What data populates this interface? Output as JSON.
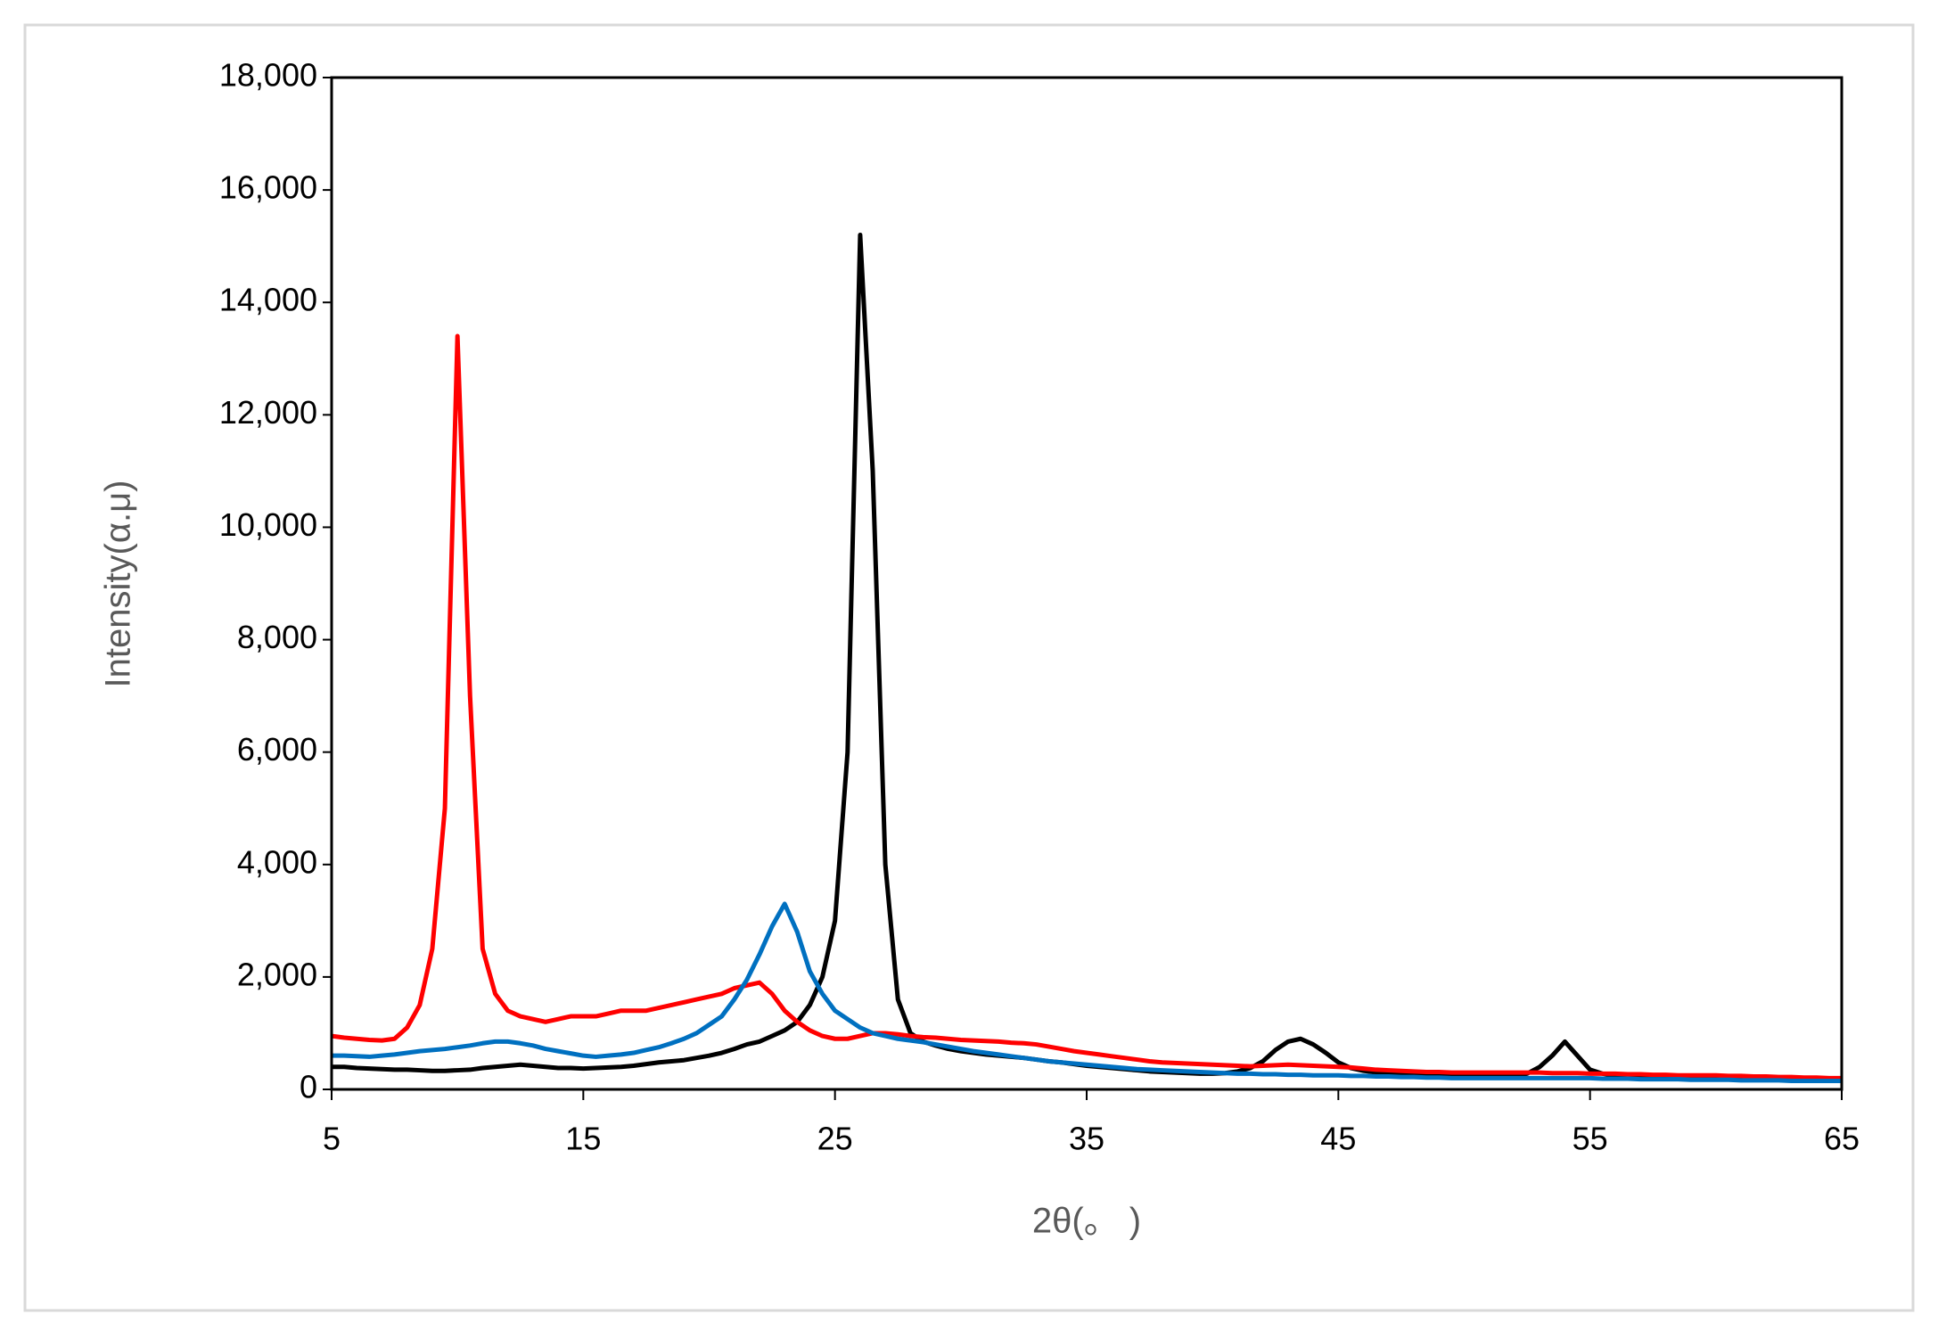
{
  "chart_data": {
    "type": "line",
    "xlabel": "2θ(。 )",
    "ylabel": "Intensity(α.μ)",
    "xlim": [
      5,
      65
    ],
    "ylim": [
      0,
      18000
    ],
    "xticks": [
      5,
      15,
      25,
      35,
      45,
      55,
      65
    ],
    "yticks": [
      0,
      {
        "value": 2000,
        "label": "2,000"
      },
      {
        "value": 4000,
        "label": "4,000"
      },
      {
        "value": 6000,
        "label": "6,000"
      },
      {
        "value": 8000,
        "label": "8,000"
      },
      {
        "value": 10000,
        "label": "10,000"
      },
      {
        "value": 12000,
        "label": "12,000"
      },
      {
        "value": 14000,
        "label": "14,000"
      },
      {
        "value": 16000,
        "label": "16,000"
      },
      {
        "value": 18000,
        "label": "18,000"
      }
    ],
    "grid": false,
    "x": [
      5,
      5.5,
      6,
      6.5,
      7,
      7.5,
      8,
      8.5,
      9,
      9.5,
      10,
      10.5,
      11,
      11.5,
      12,
      12.5,
      13,
      13.5,
      14,
      14.5,
      15,
      15.5,
      16,
      16.5,
      17,
      17.5,
      18,
      18.5,
      19,
      19.5,
      20,
      20.5,
      21,
      21.5,
      22,
      22.5,
      23,
      23.5,
      24,
      24.5,
      25,
      25.5,
      26,
      26.5,
      27,
      27.5,
      28,
      28.5,
      29,
      29.5,
      30,
      30.5,
      31,
      31.5,
      32,
      32.5,
      33,
      33.5,
      34,
      34.5,
      35,
      35.5,
      36,
      36.5,
      37,
      37.5,
      38,
      38.5,
      39,
      39.5,
      40,
      40.5,
      41,
      41.5,
      42,
      42.5,
      43,
      43.5,
      44,
      44.5,
      45,
      45.5,
      46,
      46.5,
      47,
      47.5,
      48,
      48.5,
      49,
      49.5,
      50,
      50.5,
      51,
      51.5,
      52,
      52.5,
      53,
      53.5,
      54,
      54.5,
      55,
      55.5,
      56,
      56.5,
      57,
      57.5,
      58,
      58.5,
      59,
      59.5,
      60,
      60.5,
      61,
      61.5,
      62,
      62.5,
      63,
      63.5,
      64,
      64.5,
      65
    ],
    "series": [
      {
        "color": "#000000",
        "values": [
          400,
          400,
          380,
          370,
          360,
          350,
          350,
          340,
          330,
          330,
          340,
          350,
          380,
          400,
          420,
          440,
          420,
          400,
          380,
          380,
          370,
          380,
          390,
          400,
          420,
          450,
          480,
          500,
          520,
          560,
          600,
          650,
          720,
          800,
          850,
          950,
          1050,
          1200,
          1500,
          2000,
          3000,
          6000,
          15200,
          11000,
          4000,
          1600,
          1000,
          850,
          780,
          720,
          680,
          650,
          620,
          600,
          580,
          560,
          530,
          500,
          480,
          450,
          420,
          400,
          380,
          360,
          340,
          320,
          310,
          300,
          290,
          280,
          280,
          290,
          320,
          380,
          500,
          700,
          850,
          900,
          800,
          650,
          480,
          380,
          330,
          300,
          280,
          270,
          260,
          250,
          250,
          240,
          240,
          240,
          230,
          230,
          240,
          280,
          400,
          600,
          850,
          600,
          350,
          280,
          250,
          240,
          230,
          220,
          220,
          210,
          210,
          200,
          200,
          200,
          190,
          190,
          180,
          180,
          170,
          170,
          160,
          160,
          150
        ]
      },
      {
        "color": "#ff0000",
        "values": [
          950,
          920,
          900,
          880,
          870,
          900,
          1100,
          1500,
          2500,
          5000,
          13400,
          7000,
          2500,
          1700,
          1400,
          1300,
          1250,
          1200,
          1250,
          1300,
          1300,
          1300,
          1350,
          1400,
          1400,
          1400,
          1450,
          1500,
          1550,
          1600,
          1650,
          1700,
          1800,
          1850,
          1900,
          1700,
          1400,
          1200,
          1050,
          950,
          900,
          900,
          950,
          1000,
          1000,
          980,
          950,
          930,
          920,
          900,
          880,
          870,
          860,
          850,
          830,
          820,
          800,
          760,
          720,
          680,
          650,
          620,
          590,
          560,
          530,
          500,
          480,
          470,
          460,
          450,
          440,
          430,
          420,
          410,
          420,
          430,
          440,
          430,
          420,
          410,
          400,
          390,
          370,
          350,
          340,
          330,
          320,
          310,
          310,
          300,
          300,
          300,
          300,
          300,
          300,
          300,
          300,
          290,
          290,
          290,
          280,
          280,
          280,
          270,
          270,
          260,
          260,
          250,
          250,
          250,
          250,
          240,
          240,
          230,
          230,
          220,
          220,
          210,
          210,
          200,
          200
        ]
      },
      {
        "color": "#0070c0",
        "values": [
          600,
          600,
          590,
          580,
          600,
          620,
          650,
          680,
          700,
          720,
          750,
          780,
          820,
          850,
          850,
          820,
          780,
          720,
          680,
          640,
          600,
          580,
          600,
          620,
          650,
          700,
          750,
          820,
          900,
          1000,
          1150,
          1300,
          1600,
          1950,
          2400,
          2900,
          3300,
          2800,
          2100,
          1700,
          1400,
          1250,
          1100,
          1000,
          950,
          900,
          870,
          840,
          800,
          760,
          720,
          680,
          650,
          620,
          590,
          560,
          530,
          500,
          480,
          460,
          440,
          420,
          400,
          380,
          360,
          350,
          340,
          330,
          320,
          310,
          300,
          290,
          280,
          280,
          270,
          270,
          260,
          260,
          250,
          250,
          250,
          240,
          240,
          230,
          230,
          220,
          220,
          210,
          210,
          200,
          200,
          200,
          200,
          200,
          200,
          200,
          200,
          200,
          200,
          200,
          200,
          190,
          190,
          190,
          180,
          180,
          180,
          180,
          170,
          170,
          170,
          170,
          160,
          160,
          160,
          160,
          150,
          150,
          150,
          150,
          150
        ]
      }
    ]
  }
}
